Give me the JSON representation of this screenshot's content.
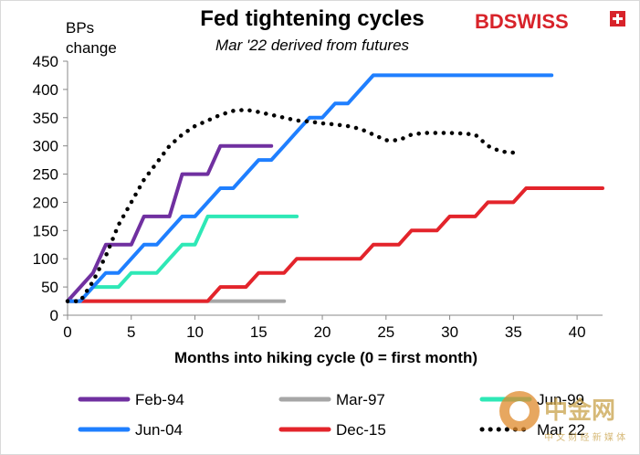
{
  "brand": {
    "logo_text": "BDSWISS",
    "logo_color": "#d8232a"
  },
  "watermark": {
    "characters": "中金网",
    "subline": "中 文 财 经 新 媒 体",
    "color": "#c9a24a"
  },
  "chart_data": {
    "type": "line",
    "title": "Fed tightening cycles",
    "subtitle": "Mar '22 derived from futures",
    "ylabel_line1": "BPs",
    "ylabel_line2": "change",
    "xlabel": "Months into hiking cycle (0 = first month)",
    "xlim": [
      0,
      42
    ],
    "ylim": [
      0,
      450
    ],
    "xticks": [
      0,
      5,
      10,
      15,
      20,
      25,
      30,
      35,
      40
    ],
    "yticks": [
      0,
      50,
      100,
      150,
      200,
      250,
      300,
      350,
      400,
      450
    ],
    "grid": false,
    "legend_position": "bottom",
    "series": [
      {
        "name": "Feb-94",
        "color": "#7030a0",
        "style": "solid",
        "x": [
          0,
          1,
          2,
          3,
          4,
          5,
          6,
          7,
          8,
          9,
          10,
          11,
          12,
          13,
          14,
          15,
          16
        ],
        "y": [
          25,
          50,
          75,
          125,
          125,
          125,
          175,
          175,
          175,
          250,
          250,
          250,
          300,
          300,
          300,
          300,
          300
        ]
      },
      {
        "name": "Mar-97",
        "color": "#a6a6a6",
        "style": "solid",
        "x": [
          0,
          5,
          10,
          15,
          17
        ],
        "y": [
          25,
          25,
          25,
          25,
          25
        ]
      },
      {
        "name": "Jun-99",
        "color": "#2ee8b6",
        "style": "solid",
        "x": [
          0,
          1,
          2,
          3,
          4,
          5,
          6,
          7,
          8,
          9,
          10,
          11,
          12,
          13,
          14,
          15,
          16,
          17,
          18
        ],
        "y": [
          25,
          25,
          50,
          50,
          50,
          75,
          75,
          75,
          100,
          125,
          125,
          175,
          175,
          175,
          175,
          175,
          175,
          175,
          175
        ]
      },
      {
        "name": "Jun-04",
        "color": "#1f7fff",
        "style": "solid",
        "x": [
          0,
          1,
          2,
          3,
          4,
          5,
          6,
          7,
          8,
          9,
          10,
          11,
          12,
          13,
          14,
          15,
          16,
          17,
          18,
          19,
          20,
          21,
          22,
          23,
          24,
          25,
          26,
          27,
          28,
          29,
          30,
          31,
          32,
          33,
          34,
          35,
          36,
          37,
          38
        ],
        "y": [
          25,
          25,
          50,
          75,
          75,
          100,
          125,
          125,
          150,
          175,
          175,
          200,
          225,
          225,
          250,
          275,
          275,
          300,
          325,
          350,
          350,
          375,
          375,
          400,
          425,
          425,
          425,
          425,
          425,
          425,
          425,
          425,
          425,
          425,
          425,
          425,
          425,
          425,
          425
        ]
      },
      {
        "name": "Dec-15",
        "color": "#e3242b",
        "style": "solid",
        "x": [
          0,
          11,
          12,
          13,
          14,
          15,
          16,
          17,
          18,
          19,
          20,
          21,
          22,
          23,
          24,
          25,
          26,
          27,
          28,
          29,
          30,
          31,
          32,
          33,
          34,
          35,
          36,
          37,
          38,
          39,
          40,
          41,
          42
        ],
        "y": [
          25,
          25,
          50,
          50,
          50,
          75,
          75,
          75,
          100,
          100,
          100,
          100,
          100,
          100,
          125,
          125,
          125,
          150,
          150,
          150,
          175,
          175,
          175,
          200,
          200,
          200,
          225,
          225,
          225,
          225,
          225,
          225,
          225
        ]
      },
      {
        "name": "Mar 22",
        "color": "#000000",
        "style": "dotted",
        "x": [
          0,
          1,
          2,
          3,
          4,
          5,
          6,
          7,
          8,
          9,
          10,
          11,
          12,
          13,
          14,
          15,
          16,
          17,
          18,
          19,
          20,
          21,
          22,
          23,
          24,
          25,
          26,
          27,
          28,
          29,
          30,
          31,
          32,
          33,
          34,
          35
        ],
        "y": [
          25,
          25,
          60,
          105,
          160,
          200,
          240,
          270,
          300,
          320,
          335,
          345,
          355,
          362,
          364,
          360,
          355,
          350,
          345,
          343,
          340,
          338,
          335,
          330,
          320,
          310,
          310,
          320,
          323,
          323,
          323,
          322,
          320,
          300,
          290,
          288
        ]
      }
    ]
  }
}
